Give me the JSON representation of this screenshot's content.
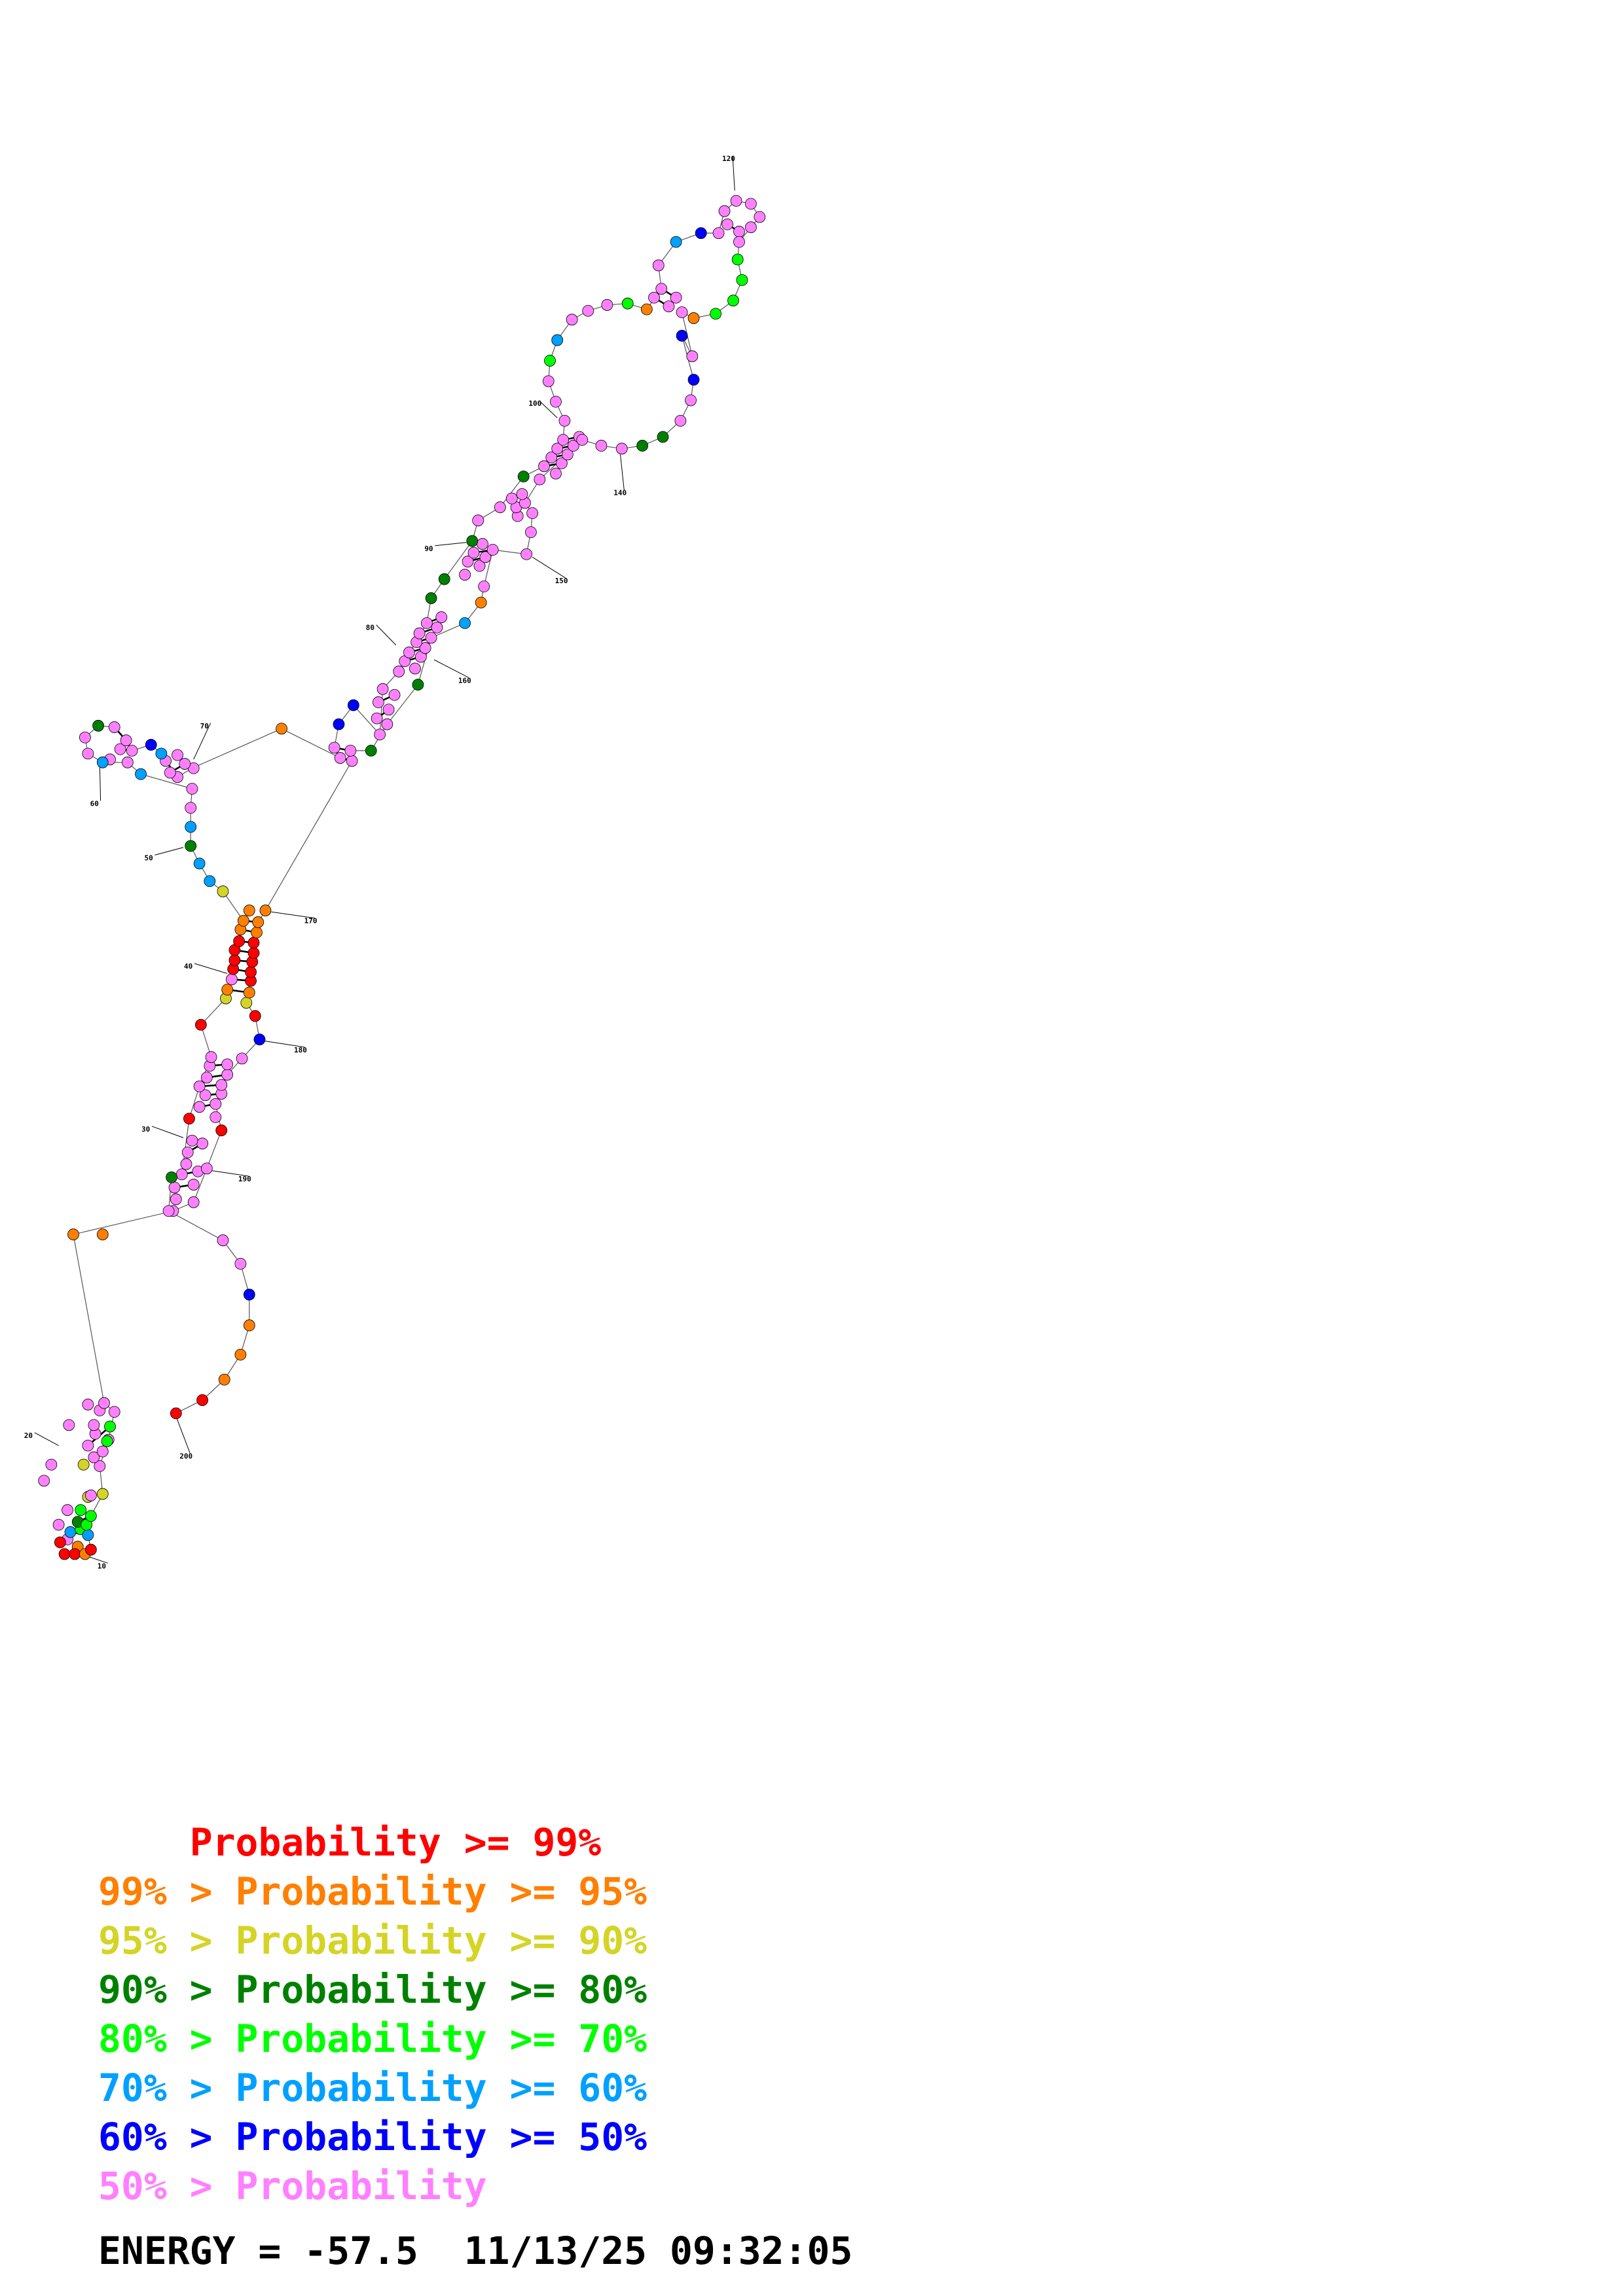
{
  "colors": {
    "p99": "#ff0000",
    "p95": "#ff7f00",
    "p90": "#d4d426",
    "p80": "#008000",
    "p70": "#00ff00",
    "p60": "#00a0ff",
    "p50": "#0000ff",
    "p0": "#ff80ff"
  },
  "position_labels": [
    "10",
    "20",
    "30",
    "40",
    "50",
    "60",
    "70",
    "80",
    "90",
    "100",
    "120",
    "140",
    "150",
    "160",
    "170",
    "180",
    "190",
    "200"
  ],
  "legend": [
    {
      "prefix": "    ",
      "text": "Probability >= 99%",
      "color_key": "p99"
    },
    {
      "prefix": "99% > ",
      "text": "Probability >= 95%",
      "color_key": "p95"
    },
    {
      "prefix": "95% > ",
      "text": "Probability >= 90%",
      "color_key": "p90"
    },
    {
      "prefix": "90% > ",
      "text": "Probability >= 80%",
      "color_key": "p80"
    },
    {
      "prefix": "80% > ",
      "text": "Probability >= 70%",
      "color_key": "p70"
    },
    {
      "prefix": "70% > ",
      "text": "Probability >= 60%",
      "color_key": "p60"
    },
    {
      "prefix": "60% > ",
      "text": "Probability >= 50%",
      "color_key": "p50"
    },
    {
      "prefix": "50% > ",
      "text": "Probability",
      "color_key": "p0"
    }
  ],
  "energy": {
    "label": "ENERGY = ",
    "value": "-57.5",
    "timestamp": "11/13/25 09:32:05"
  }
}
